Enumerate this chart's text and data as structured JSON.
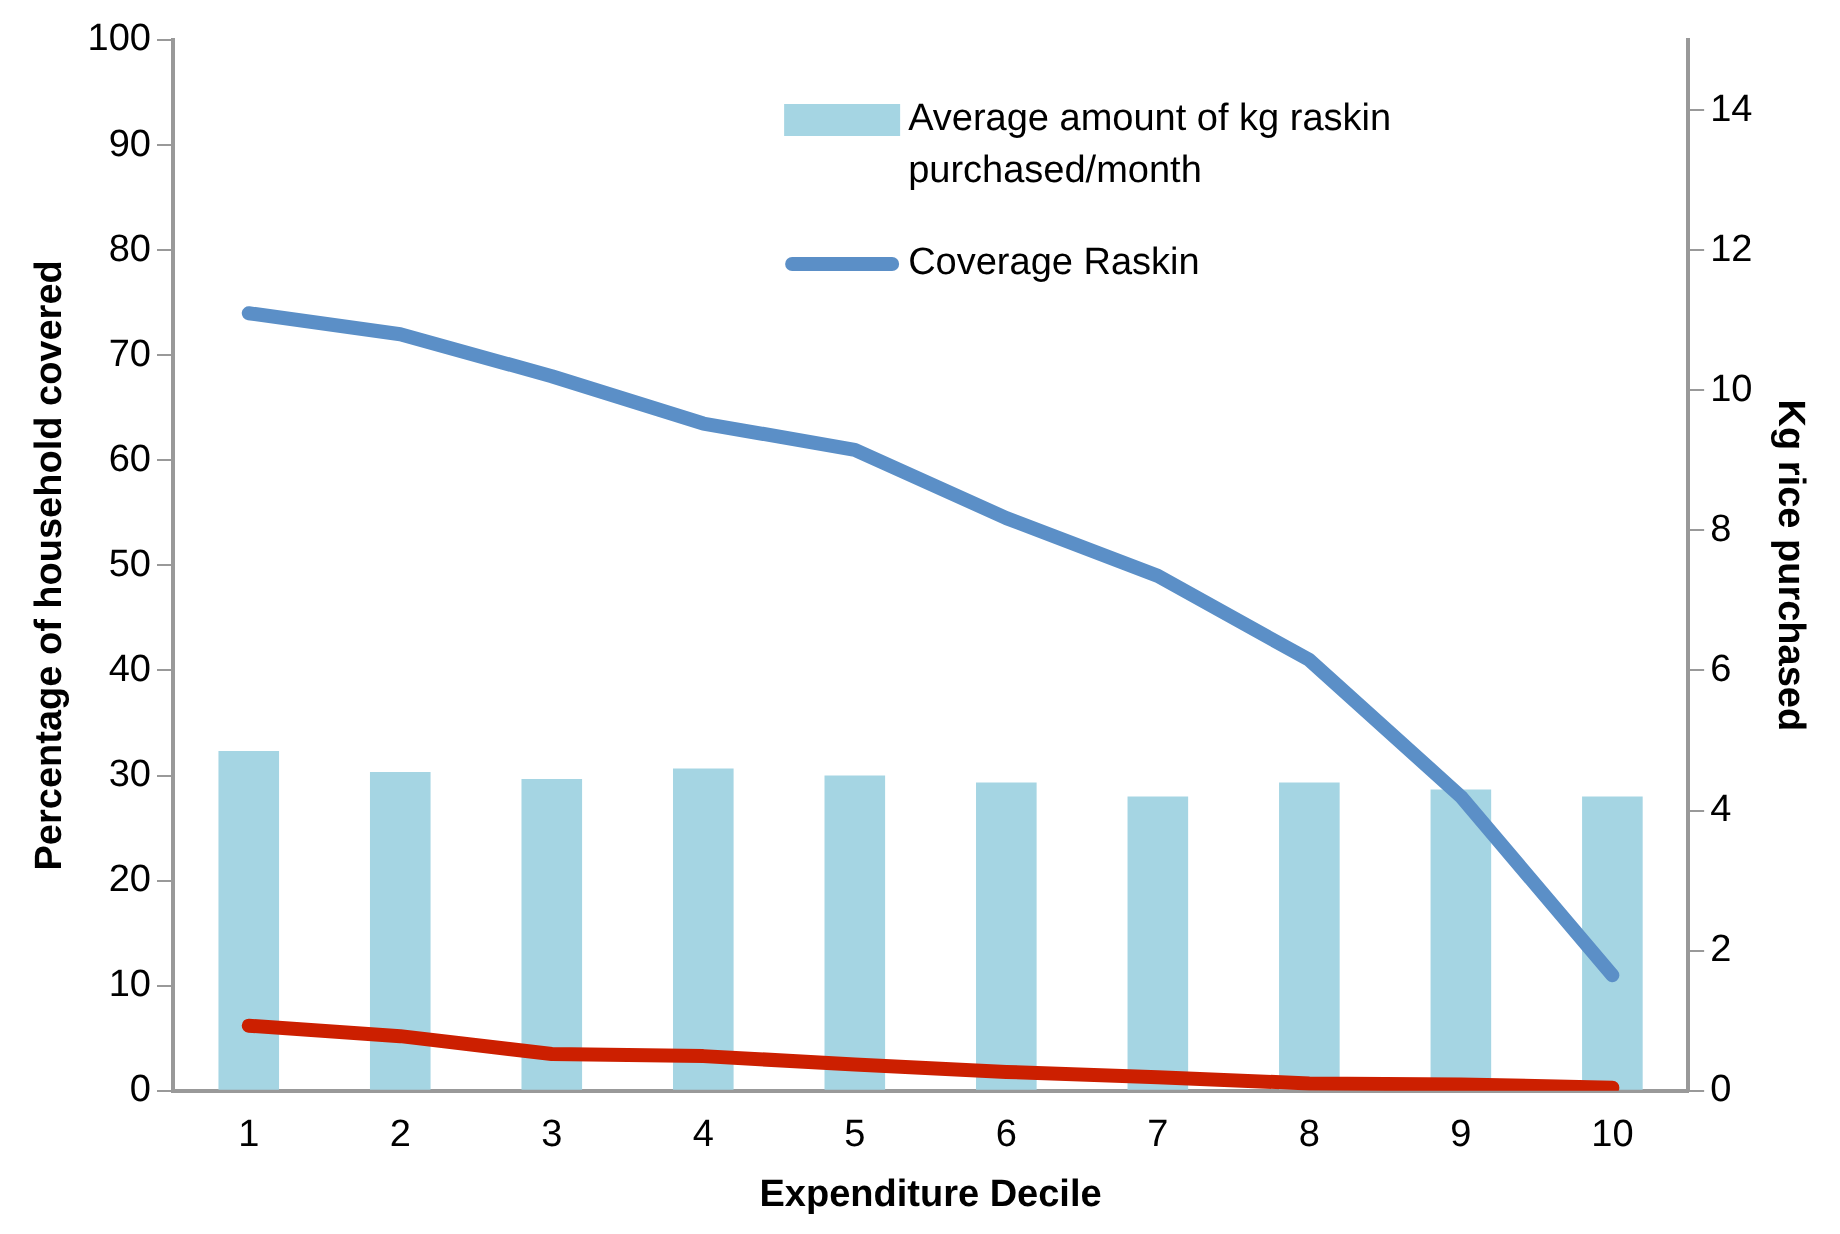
{
  "chart_data": {
    "type": "bar",
    "xlabel": "Expenditure Decile",
    "ylabel": "Percentage of household covered",
    "y2label": "Kg rice purchased",
    "categories": [
      "1",
      "2",
      "3",
      "4",
      "5",
      "6",
      "7",
      "8",
      "9",
      "10"
    ],
    "series": [
      {
        "name": "Average amount of kg raskin purchased/month",
        "axis": "y2",
        "color": "#a5d5e3",
        "values": [
          4.85,
          4.55,
          4.45,
          4.6,
          4.5,
          4.4,
          4.2,
          4.4,
          4.3,
          4.2
        ]
      },
      {
        "name": "Coverage Raskin",
        "type": "line",
        "color": "#5b8fc7",
        "values": [
          74,
          72,
          68,
          63.5,
          61,
          54.5,
          49,
          41,
          28,
          11
        ]
      },
      {
        "type": "line",
        "color": "#cc1f00",
        "values": [
          6.2,
          5.2,
          3.5,
          3.3,
          2.5,
          1.8,
          1.3,
          0.7,
          0.6,
          0.3
        ]
      }
    ],
    "ylim": [
      0,
      100
    ],
    "yticks": [
      0,
      10,
      20,
      30,
      40,
      50,
      60,
      70,
      80,
      90,
      100
    ],
    "y2lim": [
      0,
      15
    ],
    "y2ticks": [
      0,
      2,
      4,
      6,
      8,
      10,
      12,
      14
    ],
    "grid": false,
    "legend": "top right",
    "marker": "none"
  }
}
